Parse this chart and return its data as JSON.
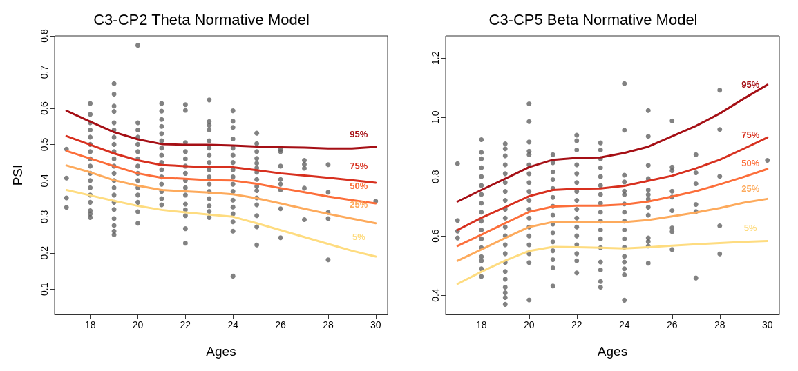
{
  "chart_data": [
    {
      "type": "line",
      "title": "C3-CP2 Theta Normative Model",
      "xlabel": "Ages",
      "ylabel": "PSI",
      "xlim": [
        16.5,
        30.5
      ],
      "xticks": [
        18,
        20,
        22,
        24,
        26,
        28,
        30
      ],
      "ylim": [
        0.03,
        0.8
      ],
      "yticks": [
        0.1,
        0.2,
        0.3,
        0.4,
        0.5,
        0.6,
        0.7,
        0.8
      ],
      "grid": false,
      "legend": false,
      "series": [
        {
          "type": "scatter",
          "marker": "circle",
          "color": "#636363",
          "x": [
            17,
            17,
            17,
            17,
            18,
            18,
            18,
            18,
            18,
            18,
            18,
            18,
            18,
            18,
            18,
            18,
            18,
            18,
            18,
            18,
            18,
            19,
            19,
            19,
            19,
            19,
            19,
            19,
            19,
            19,
            19,
            19,
            19,
            19,
            19,
            19,
            19,
            19,
            19,
            19,
            19,
            19,
            20,
            20,
            20,
            20,
            20,
            20,
            20,
            20,
            20,
            20,
            20,
            20,
            20,
            20,
            20,
            21,
            21,
            21,
            21,
            21,
            21,
            21,
            21,
            21,
            21,
            21,
            21,
            21,
            21,
            21,
            22,
            22,
            22,
            22,
            22,
            22,
            22,
            22,
            22,
            22,
            22,
            22,
            22,
            22,
            22,
            23,
            23,
            23,
            23,
            23,
            23,
            23,
            23,
            23,
            23,
            23,
            23,
            23,
            23,
            23,
            23,
            24,
            24,
            24,
            24,
            24,
            24,
            24,
            24,
            24,
            24,
            24,
            24,
            24,
            24,
            24,
            24,
            24,
            25,
            25,
            25,
            25,
            25,
            25,
            25,
            25,
            25,
            25,
            25,
            25,
            25,
            25,
            25,
            26,
            26,
            26,
            26,
            26,
            26,
            26,
            26,
            27,
            27,
            27,
            27,
            27,
            28,
            28,
            28,
            28,
            28,
            30
          ],
          "values": [
            0.487,
            0.407,
            0.352,
            0.326,
            0.613,
            0.583,
            0.56,
            0.54,
            0.52,
            0.5,
            0.48,
            0.46,
            0.44,
            0.42,
            0.4,
            0.38,
            0.36,
            0.34,
            0.317,
            0.308,
            0.298,
            0.668,
            0.639,
            0.606,
            0.591,
            0.56,
            0.54,
            0.52,
            0.5,
            0.48,
            0.46,
            0.44,
            0.42,
            0.4,
            0.38,
            0.36,
            0.34,
            0.32,
            0.295,
            0.276,
            0.26,
            0.25,
            0.774,
            0.56,
            0.54,
            0.52,
            0.5,
            0.48,
            0.46,
            0.44,
            0.42,
            0.4,
            0.38,
            0.36,
            0.34,
            0.314,
            0.282,
            0.613,
            0.592,
            0.569,
            0.55,
            0.53,
            0.51,
            0.49,
            0.47,
            0.45,
            0.43,
            0.41,
            0.39,
            0.37,
            0.35,
            0.333,
            0.61,
            0.594,
            0.505,
            0.48,
            0.46,
            0.44,
            0.42,
            0.4,
            0.38,
            0.36,
            0.335,
            0.319,
            0.303,
            0.267,
            0.227,
            0.623,
            0.563,
            0.553,
            0.54,
            0.51,
            0.49,
            0.47,
            0.45,
            0.43,
            0.41,
            0.39,
            0.37,
            0.35,
            0.33,
            0.315,
            0.298,
            0.593,
            0.564,
            0.547,
            0.515,
            0.49,
            0.47,
            0.45,
            0.43,
            0.41,
            0.39,
            0.37,
            0.346,
            0.327,
            0.308,
            0.286,
            0.26,
            0.136,
            0.531,
            0.502,
            0.48,
            0.461,
            0.448,
            0.435,
            0.423,
            0.403,
            0.384,
            0.372,
            0.352,
            0.333,
            0.303,
            0.272,
            0.222,
            0.486,
            0.48,
            0.44,
            0.403,
            0.39,
            0.374,
            0.322,
            0.242,
            0.456,
            0.445,
            0.434,
            0.379,
            0.292,
            0.444,
            0.368,
            0.312,
            0.295,
            0.181,
            0.343
          ]
        },
        {
          "name": "95%",
          "marker": "none",
          "color": "#a50f15",
          "x": [
            17,
            18,
            19,
            20,
            21,
            22,
            23,
            24,
            25,
            26,
            27,
            28,
            29,
            30
          ],
          "values": [
            0.593,
            0.563,
            0.534,
            0.514,
            0.501,
            0.499,
            0.499,
            0.497,
            0.494,
            0.492,
            0.491,
            0.489,
            0.489,
            0.493
          ]
        },
        {
          "name": "75%",
          "marker": "none",
          "color": "#d7301f",
          "x": [
            17,
            18,
            19,
            20,
            21,
            22,
            23,
            24,
            25,
            26,
            27,
            28,
            29,
            30
          ],
          "values": [
            0.523,
            0.499,
            0.475,
            0.456,
            0.443,
            0.44,
            0.437,
            0.437,
            0.429,
            0.42,
            0.414,
            0.408,
            0.401,
            0.394
          ]
        },
        {
          "name": "50%",
          "marker": "none",
          "color": "#fc6e3a",
          "x": [
            17,
            18,
            19,
            20,
            21,
            22,
            23,
            24,
            25,
            26,
            27,
            28,
            29,
            30
          ],
          "values": [
            0.482,
            0.461,
            0.44,
            0.42,
            0.408,
            0.405,
            0.401,
            0.4,
            0.391,
            0.379,
            0.368,
            0.356,
            0.346,
            0.337
          ]
        },
        {
          "name": "25%",
          "marker": "none",
          "color": "#fdaa5c",
          "x": [
            17,
            18,
            19,
            20,
            21,
            22,
            23,
            24,
            25,
            26,
            27,
            28,
            29,
            30
          ],
          "values": [
            0.442,
            0.423,
            0.401,
            0.386,
            0.374,
            0.37,
            0.367,
            0.362,
            0.351,
            0.337,
            0.322,
            0.308,
            0.295,
            0.282
          ]
        },
        {
          "name": "5%",
          "marker": "none",
          "color": "#fedc80",
          "x": [
            17,
            18,
            19,
            20,
            21,
            22,
            23,
            24,
            25,
            26,
            27,
            28,
            29,
            30
          ],
          "values": [
            0.374,
            0.359,
            0.344,
            0.33,
            0.319,
            0.312,
            0.306,
            0.3,
            0.282,
            0.263,
            0.244,
            0.225,
            0.206,
            0.19
          ]
        }
      ]
    },
    {
      "type": "line",
      "title": "C3-CP5 Beta Normative Model",
      "xlabel": "Ages",
      "xlim": [
        16.5,
        30.5
      ],
      "xticks": [
        18,
        20,
        22,
        24,
        26,
        28,
        30
      ],
      "ylim": [
        0.335,
        1.275
      ],
      "yticks": [
        0.4,
        0.6,
        0.8,
        {
          "value": 1,
          "label": "1.0"
        },
        1.2
      ],
      "grid": false,
      "legend": false,
      "series": [
        {
          "type": "scatter",
          "marker": "circle",
          "color": "#636363",
          "x": [
            17,
            17,
            17,
            17,
            18,
            18,
            18,
            18,
            18,
            18,
            18,
            18,
            18,
            18,
            18,
            18,
            18,
            18,
            18,
            18,
            18,
            19,
            19,
            19,
            19,
            19,
            19,
            19,
            19,
            19,
            19,
            19,
            19,
            19,
            19,
            19,
            19,
            19,
            19,
            19,
            19,
            19,
            20,
            20,
            20,
            20,
            20,
            20,
            20,
            20,
            20,
            20,
            20,
            20,
            20,
            20,
            20,
            20,
            20,
            20,
            21,
            21,
            21,
            21,
            21,
            21,
            21,
            21,
            21,
            21,
            21,
            21,
            21,
            21,
            21,
            22,
            22,
            22,
            22,
            22,
            22,
            22,
            22,
            22,
            22,
            22,
            22,
            22,
            22,
            22,
            22,
            23,
            23,
            23,
            23,
            23,
            23,
            23,
            23,
            23,
            23,
            23,
            23,
            23,
            23,
            23,
            23,
            23,
            24,
            24,
            24,
            24,
            24,
            24,
            24,
            24,
            24,
            24,
            24,
            24,
            24,
            24,
            24,
            24,
            24,
            25,
            25,
            25,
            25,
            25,
            25,
            25,
            25,
            25,
            25,
            25,
            25,
            25,
            26,
            26,
            26,
            26,
            26,
            26,
            26,
            26,
            26,
            27,
            27,
            27,
            27,
            27,
            27,
            28,
            28,
            28,
            28,
            28,
            30
          ],
          "values": [
            0.844,
            0.652,
            0.616,
            0.593,
            0.925,
            0.882,
            0.86,
            0.83,
            0.8,
            0.77,
            0.74,
            0.71,
            0.68,
            0.65,
            0.62,
            0.59,
            0.56,
            0.53,
            0.516,
            0.489,
            0.463,
            0.911,
            0.894,
            0.87,
            0.84,
            0.81,
            0.78,
            0.75,
            0.72,
            0.69,
            0.66,
            0.63,
            0.6,
            0.57,
            0.54,
            0.51,
            0.48,
            0.454,
            0.427,
            0.408,
            0.392,
            0.369,
            1.046,
            0.986,
            0.917,
            0.886,
            0.874,
            0.84,
            0.81,
            0.78,
            0.75,
            0.72,
            0.69,
            0.66,
            0.63,
            0.6,
            0.57,
            0.54,
            0.51,
            0.384,
            0.874,
            0.847,
            0.816,
            0.79,
            0.76,
            0.73,
            0.7,
            0.67,
            0.64,
            0.61,
            0.58,
            0.55,
            0.52,
            0.492,
            0.431,
            0.94,
            0.921,
            0.89,
            0.84,
            0.81,
            0.78,
            0.75,
            0.72,
            0.69,
            0.66,
            0.63,
            0.6,
            0.57,
            0.54,
            0.516,
            0.475,
            0.914,
            0.89,
            0.86,
            0.83,
            0.8,
            0.77,
            0.74,
            0.71,
            0.68,
            0.65,
            0.62,
            0.59,
            0.56,
            0.512,
            0.485,
            0.446,
            0.427,
            1.114,
            0.957,
            0.805,
            0.782,
            0.751,
            0.739,
            0.708,
            0.68,
            0.65,
            0.62,
            0.59,
            0.562,
            0.531,
            0.512,
            0.489,
            0.469,
            0.383,
            1.023,
            0.936,
            0.838,
            0.793,
            0.755,
            0.739,
            0.724,
            0.697,
            0.67,
            0.593,
            0.581,
            0.566,
            0.508,
            0.988,
            0.832,
            0.82,
            0.751,
            0.731,
            0.685,
            0.627,
            0.614,
            0.554,
            0.874,
            0.813,
            0.776,
            0.706,
            0.682,
            0.458,
            1.092,
            0.959,
            0.801,
            0.634,
            0.539,
            0.855
          ]
        },
        {
          "name": "95%",
          "marker": "none",
          "color": "#a50f15",
          "x": [
            17,
            18,
            19,
            20,
            21,
            22,
            23,
            24,
            25,
            26,
            27,
            28,
            29,
            30
          ],
          "values": [
            0.716,
            0.755,
            0.793,
            0.832,
            0.857,
            0.863,
            0.865,
            0.88,
            0.901,
            0.936,
            0.971,
            1.013,
            1.063,
            1.11
          ]
        },
        {
          "name": "75%",
          "marker": "none",
          "color": "#d7301f",
          "x": [
            17,
            18,
            19,
            20,
            21,
            22,
            23,
            24,
            25,
            26,
            27,
            28,
            29,
            30
          ],
          "values": [
            0.62,
            0.661,
            0.697,
            0.734,
            0.755,
            0.759,
            0.76,
            0.769,
            0.786,
            0.803,
            0.828,
            0.857,
            0.894,
            0.932
          ]
        },
        {
          "name": "50%",
          "marker": "none",
          "color": "#fc6e3a",
          "x": [
            17,
            18,
            19,
            20,
            21,
            22,
            23,
            24,
            25,
            26,
            27,
            28,
            29,
            30
          ],
          "values": [
            0.566,
            0.604,
            0.643,
            0.681,
            0.699,
            0.702,
            0.702,
            0.706,
            0.716,
            0.733,
            0.751,
            0.774,
            0.799,
            0.826
          ]
        },
        {
          "name": "25%",
          "marker": "none",
          "color": "#fdaa5c",
          "x": [
            17,
            18,
            19,
            20,
            21,
            22,
            23,
            24,
            25,
            26,
            27,
            28,
            29,
            30
          ],
          "values": [
            0.516,
            0.554,
            0.593,
            0.63,
            0.647,
            0.648,
            0.647,
            0.647,
            0.654,
            0.666,
            0.679,
            0.694,
            0.712,
            0.725
          ]
        },
        {
          "name": "5%",
          "marker": "none",
          "color": "#fedc80",
          "x": [
            17,
            18,
            19,
            20,
            21,
            22,
            23,
            24,
            25,
            26,
            27,
            28,
            29,
            30
          ],
          "values": [
            0.438,
            0.479,
            0.517,
            0.549,
            0.563,
            0.562,
            0.56,
            0.558,
            0.562,
            0.567,
            0.572,
            0.576,
            0.58,
            0.583
          ]
        }
      ]
    }
  ]
}
